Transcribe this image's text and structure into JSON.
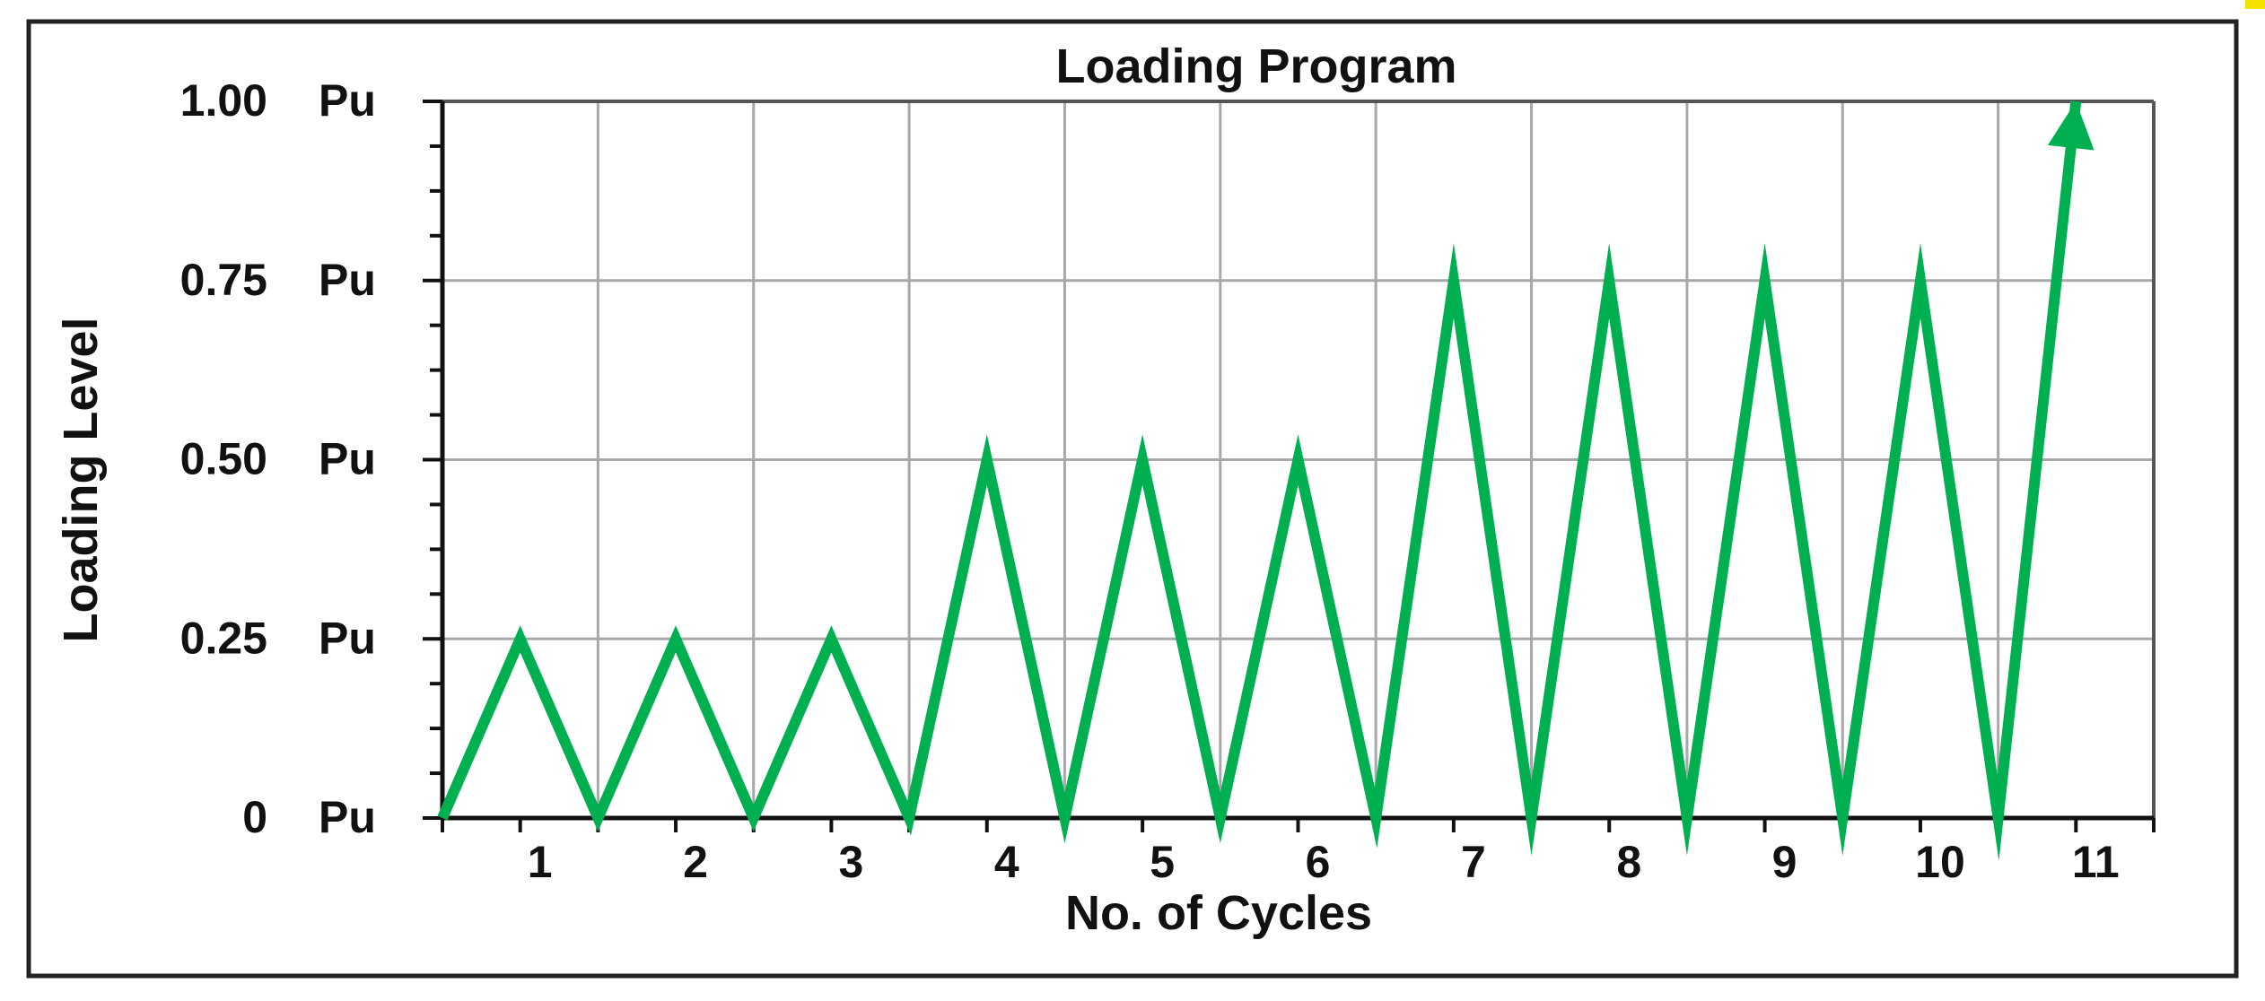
{
  "chart_data": {
    "type": "line",
    "title": "Loading Program",
    "xlabel": "No. of Cycles",
    "ylabel": "Loading Level",
    "x_ticks": [
      "1",
      "2",
      "3",
      "4",
      "5",
      "6",
      "7",
      "8",
      "9",
      "10",
      "11"
    ],
    "y_ticks": [
      {
        "value": 0,
        "label": "0",
        "unit": "Pu"
      },
      {
        "value": 0.25,
        "label": "0.25",
        "unit": "Pu"
      },
      {
        "value": 0.5,
        "label": "0.50",
        "unit": "Pu"
      },
      {
        "value": 0.75,
        "label": "0.75",
        "unit": "Pu"
      },
      {
        "value": 1.0,
        "label": "1.00",
        "unit": "Pu"
      }
    ],
    "xlim": [
      0.5,
      11.5
    ],
    "ylim": [
      0,
      1.0
    ],
    "grid": true,
    "series": [
      {
        "color": "#00b050",
        "end_marker": "arrow",
        "points": [
          [
            0.5,
            0
          ],
          [
            1,
            0.25
          ],
          [
            1.5,
            0
          ],
          [
            2,
            0.25
          ],
          [
            2.5,
            0
          ],
          [
            3,
            0.25
          ],
          [
            3.5,
            0
          ],
          [
            4,
            0.5
          ],
          [
            4.5,
            0
          ],
          [
            5,
            0.5
          ],
          [
            5.5,
            0
          ],
          [
            6,
            0.5
          ],
          [
            6.5,
            0
          ],
          [
            7,
            0.75
          ],
          [
            7.5,
            0
          ],
          [
            8,
            0.75
          ],
          [
            8.5,
            0
          ],
          [
            9,
            0.75
          ],
          [
            9.5,
            0
          ],
          [
            10,
            0.75
          ],
          [
            10.5,
            0
          ],
          [
            11,
            1.0
          ]
        ]
      }
    ]
  }
}
